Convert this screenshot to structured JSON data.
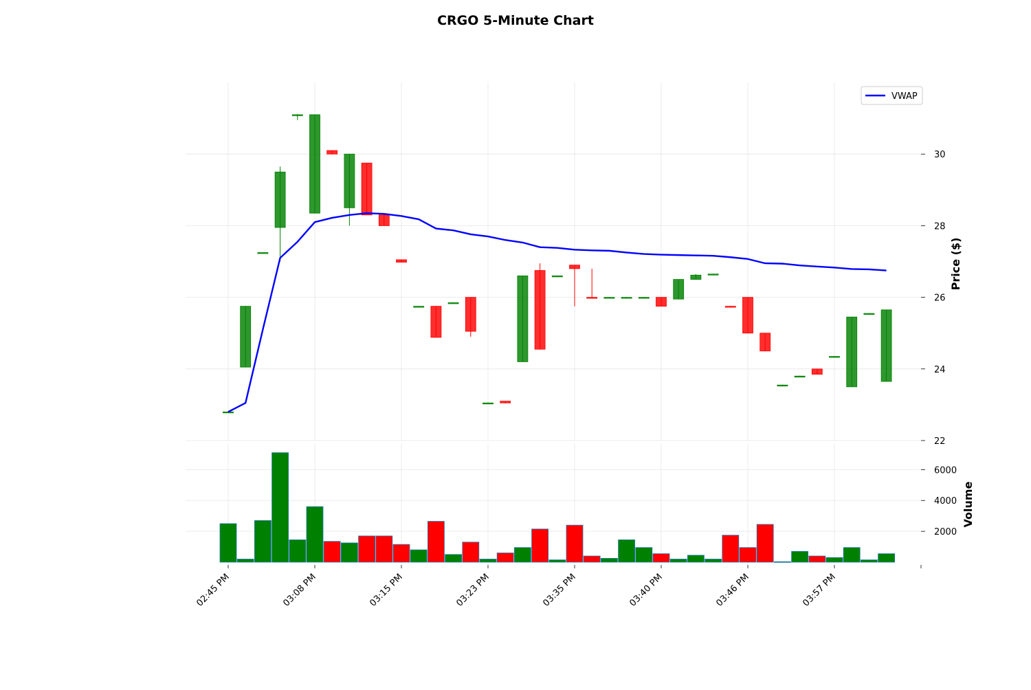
{
  "chart_data": {
    "type": "candlestick",
    "title": "CRGO 5-Minute Chart",
    "price_label": "Price ($)",
    "volume_label": "Volume",
    "legend": {
      "label": "VWAP",
      "placement": "top-right"
    },
    "price_ylim": [
      22,
      32
    ],
    "price_ticks": [
      "22",
      "24",
      "26",
      "28",
      "30"
    ],
    "volume_ylim": [
      0,
      7400
    ],
    "volume_ticks": [
      "2000",
      "4000",
      "6000"
    ],
    "x_tick_labels": [
      "02:45 PM",
      "03:08 PM",
      "03:15 PM",
      "03:23 PM",
      "03:35 PM",
      "03:40 PM",
      "03:46 PM",
      "03:57 PM"
    ],
    "grid": true,
    "colors": {
      "up": "#008000",
      "down": "#ff0000",
      "vwap": "#0000ff"
    },
    "candles": [
      {
        "o": 22.8,
        "h": 22.82,
        "l": 22.78,
        "c": 22.8,
        "v": 2500
      },
      {
        "o": 24.05,
        "h": 25.75,
        "l": 24.05,
        "c": 25.75,
        "v": 200
      },
      {
        "o": 27.25,
        "h": 27.26,
        "l": 27.24,
        "c": 27.25,
        "v": 2700
      },
      {
        "o": 27.95,
        "h": 29.65,
        "l": 27.0,
        "c": 29.5,
        "v": 7100
      },
      {
        "o": 31.1,
        "h": 31.12,
        "l": 30.95,
        "c": 31.1,
        "v": 1450
      },
      {
        "o": 28.35,
        "h": 31.1,
        "l": 28.35,
        "c": 31.1,
        "v": 3600
      },
      {
        "o": 30.1,
        "h": 30.1,
        "l": 30.0,
        "c": 30.0,
        "v": 1350
      },
      {
        "o": 28.5,
        "h": 30.0,
        "l": 28.0,
        "c": 30.0,
        "v": 1250
      },
      {
        "o": 29.75,
        "h": 29.75,
        "l": 28.3,
        "c": 28.3,
        "v": 1700
      },
      {
        "o": 28.3,
        "h": 28.3,
        "l": 28.0,
        "c": 28.0,
        "v": 1700
      },
      {
        "o": 27.05,
        "h": 27.05,
        "l": 26.98,
        "c": 26.98,
        "v": 1150
      },
      {
        "o": 25.75,
        "h": 25.76,
        "l": 25.74,
        "c": 25.75,
        "v": 800
      },
      {
        "o": 25.75,
        "h": 25.75,
        "l": 24.88,
        "c": 24.88,
        "v": 2650
      },
      {
        "o": 25.85,
        "h": 25.86,
        "l": 25.84,
        "c": 25.85,
        "v": 500
      },
      {
        "o": 26.0,
        "h": 26.0,
        "l": 24.9,
        "c": 25.05,
        "v": 1300
      },
      {
        "o": 23.05,
        "h": 23.06,
        "l": 23.04,
        "c": 23.05,
        "v": 200
      },
      {
        "o": 23.1,
        "h": 23.1,
        "l": 23.05,
        "c": 23.05,
        "v": 600
      },
      {
        "o": 24.2,
        "h": 26.6,
        "l": 24.2,
        "c": 26.6,
        "v": 950
      },
      {
        "o": 26.75,
        "h": 26.95,
        "l": 24.55,
        "c": 24.55,
        "v": 2150
      },
      {
        "o": 26.6,
        "h": 26.61,
        "l": 26.59,
        "c": 26.6,
        "v": 150
      },
      {
        "o": 26.9,
        "h": 26.9,
        "l": 25.75,
        "c": 26.8,
        "v": 2400
      },
      {
        "o": 26.0,
        "h": 26.8,
        "l": 25.98,
        "c": 25.98,
        "v": 400
      },
      {
        "o": 26.0,
        "h": 26.01,
        "l": 25.99,
        "c": 26.0,
        "v": 250
      },
      {
        "o": 26.0,
        "h": 26.01,
        "l": 25.99,
        "c": 26.0,
        "v": 1450
      },
      {
        "o": 26.0,
        "h": 26.01,
        "l": 25.99,
        "c": 26.0,
        "v": 950
      },
      {
        "o": 26.0,
        "h": 26.0,
        "l": 25.75,
        "c": 25.75,
        "v": 550
      },
      {
        "o": 25.95,
        "h": 26.5,
        "l": 25.95,
        "c": 26.5,
        "v": 200
      },
      {
        "o": 26.5,
        "h": 26.65,
        "l": 26.5,
        "c": 26.62,
        "v": 450
      },
      {
        "o": 26.65,
        "h": 26.66,
        "l": 26.64,
        "c": 26.65,
        "v": 200
      },
      {
        "o": 25.75,
        "h": 25.76,
        "l": 25.72,
        "c": 25.74,
        "v": 1750
      },
      {
        "o": 26.0,
        "h": 26.0,
        "l": 25.0,
        "c": 25.0,
        "v": 950
      },
      {
        "o": 25.0,
        "h": 25.0,
        "l": 24.5,
        "c": 24.5,
        "v": 2450
      },
      {
        "o": 23.55,
        "h": 23.56,
        "l": 23.54,
        "c": 23.55,
        "v": 30
      },
      {
        "o": 23.8,
        "h": 23.81,
        "l": 23.79,
        "c": 23.8,
        "v": 700
      },
      {
        "o": 24.0,
        "h": 24.0,
        "l": 23.85,
        "c": 23.85,
        "v": 400
      },
      {
        "o": 24.35,
        "h": 24.36,
        "l": 24.34,
        "c": 24.35,
        "v": 300
      },
      {
        "o": 23.5,
        "h": 25.45,
        "l": 23.5,
        "c": 25.45,
        "v": 950
      },
      {
        "o": 25.55,
        "h": 25.56,
        "l": 25.54,
        "c": 25.55,
        "v": 150
      },
      {
        "o": 23.65,
        "h": 25.65,
        "l": 23.65,
        "c": 25.65,
        "v": 550
      }
    ],
    "vwap": [
      22.8,
      23.05,
      25.1,
      27.1,
      27.55,
      28.1,
      28.22,
      28.3,
      28.35,
      28.33,
      28.27,
      28.18,
      27.92,
      27.87,
      27.76,
      27.7,
      27.6,
      27.53,
      27.4,
      27.38,
      27.33,
      27.31,
      27.3,
      27.25,
      27.21,
      27.19,
      27.18,
      27.17,
      27.16,
      27.12,
      27.07,
      26.95,
      26.94,
      26.89,
      26.86,
      26.83,
      26.79,
      26.78,
      26.75
    ]
  }
}
